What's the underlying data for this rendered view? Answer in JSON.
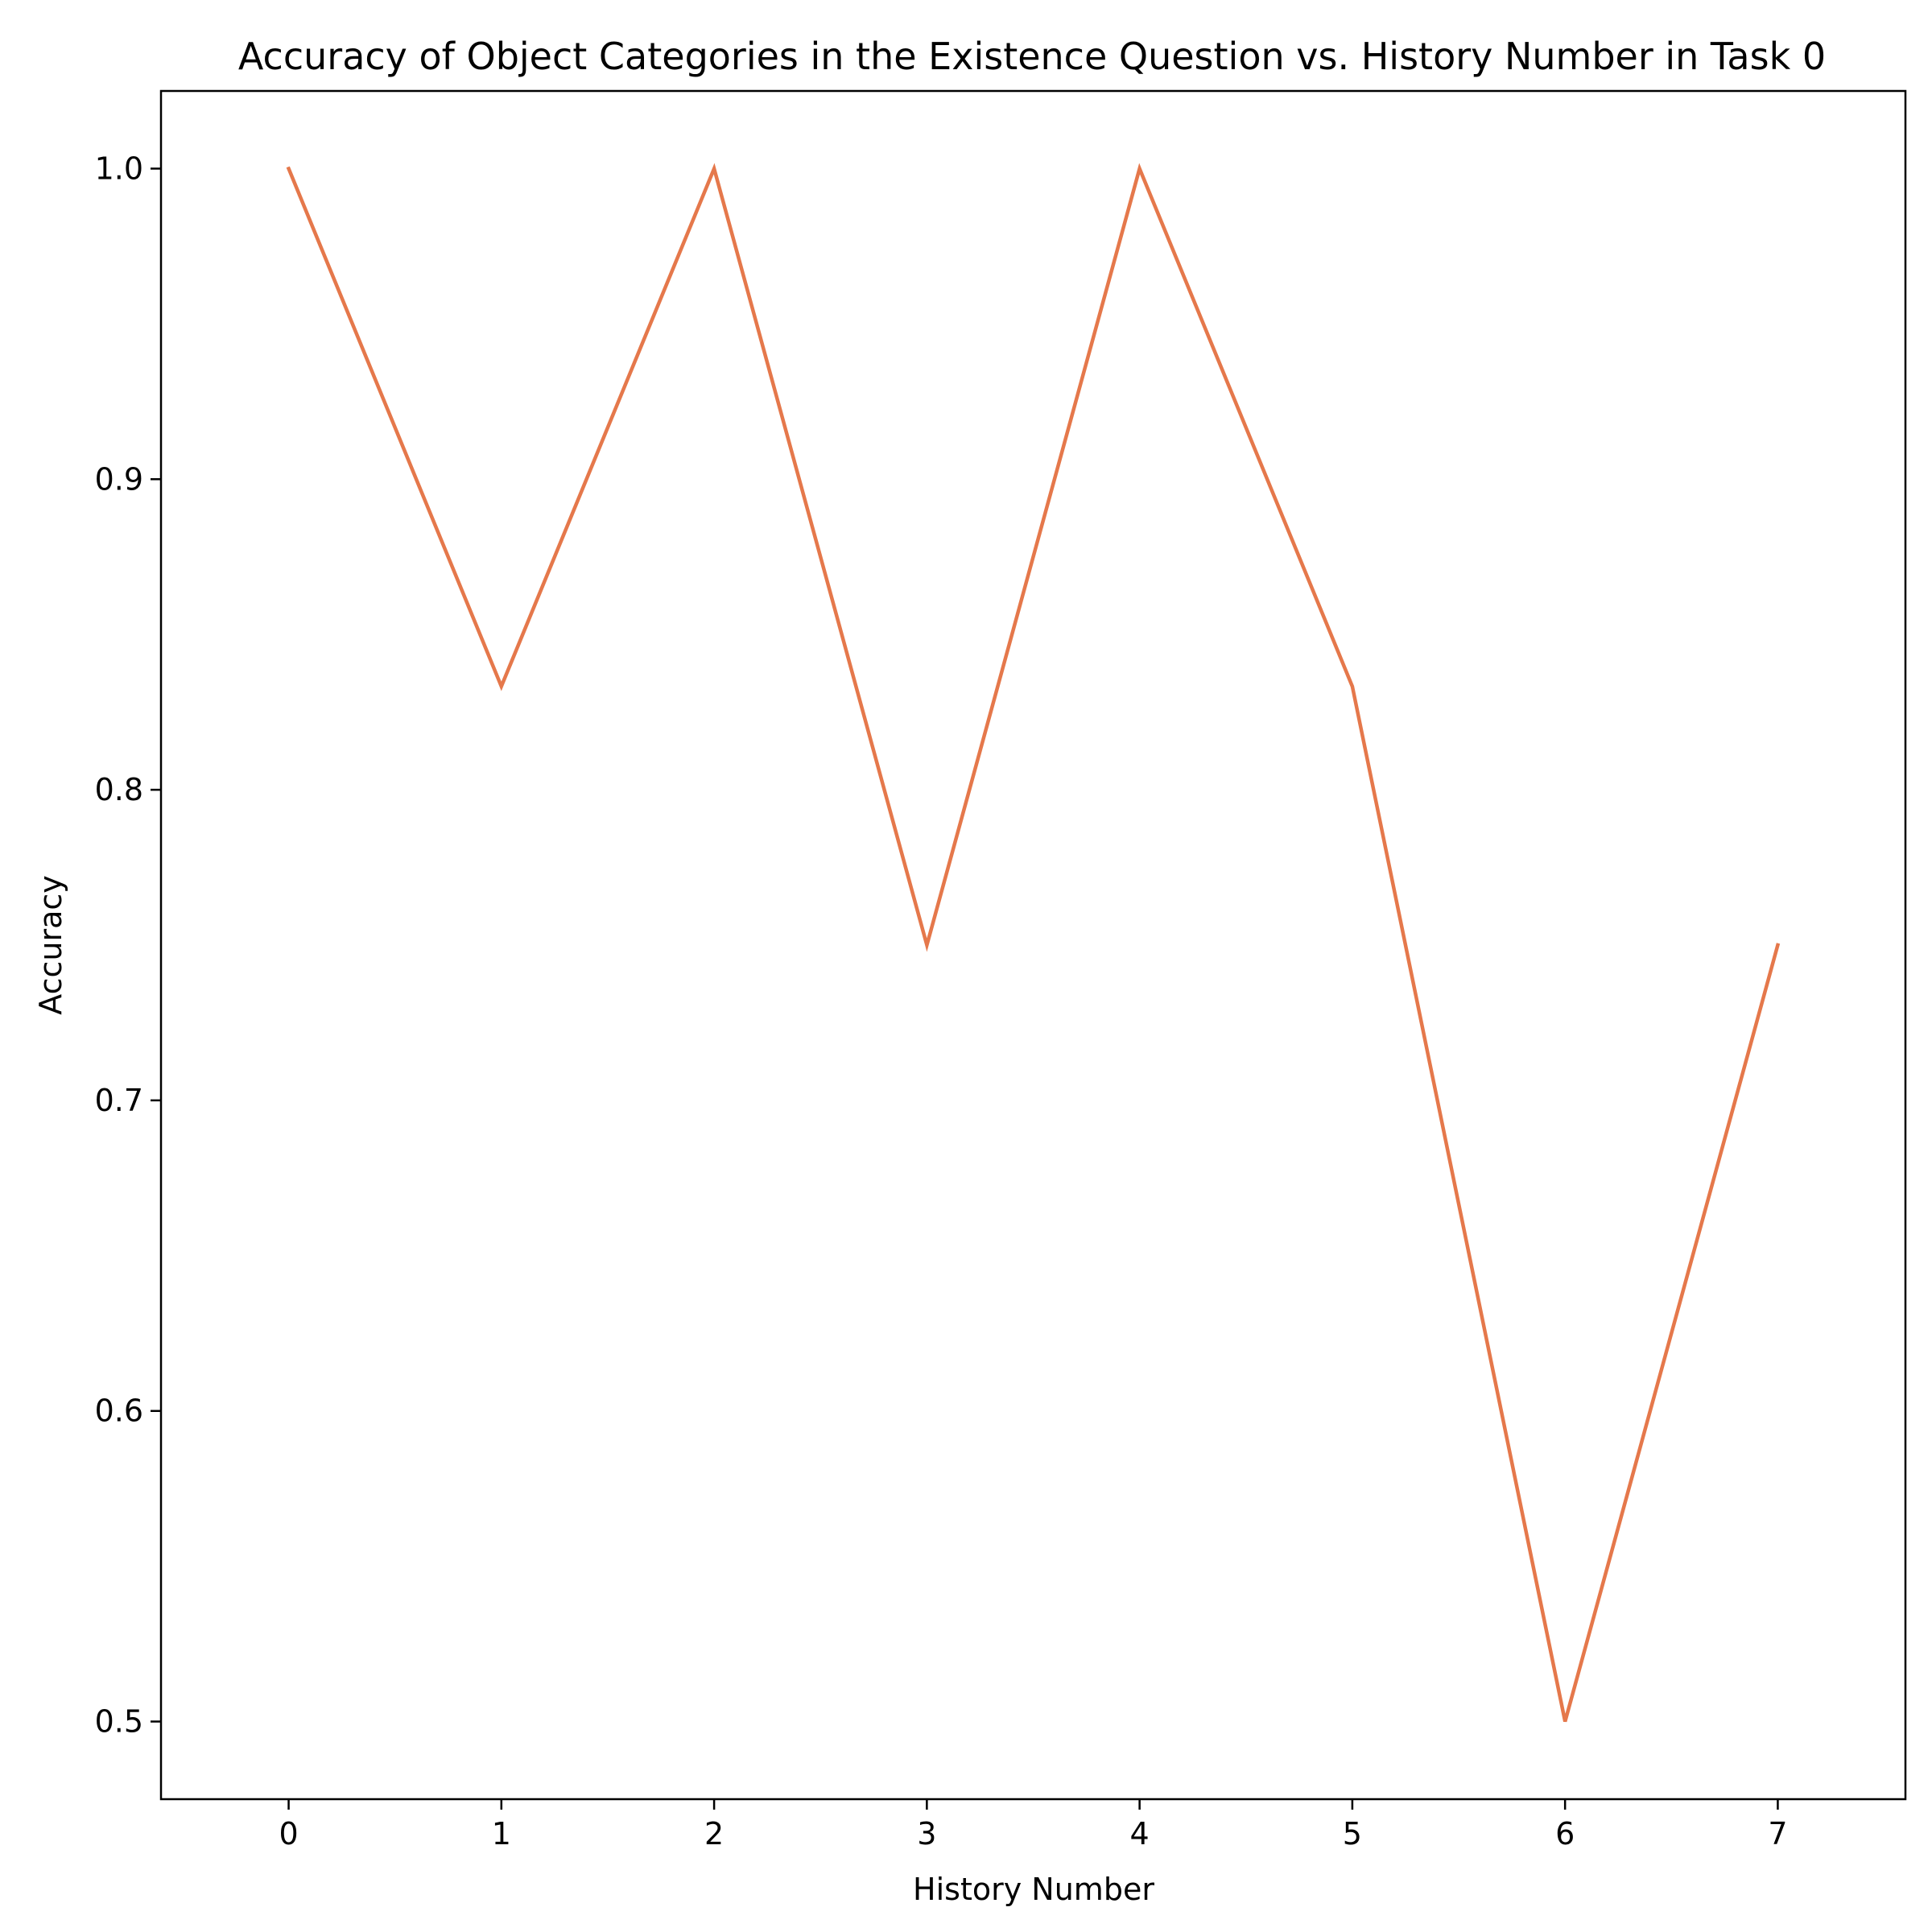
{
  "chart_data": {
    "type": "line",
    "title": "Accuracy of Object Categories in the Existence Question vs. History Number in Task 0",
    "xlabel": "History Number",
    "ylabel": "Accuracy",
    "x": [
      0,
      1,
      2,
      3,
      4,
      5,
      6,
      7
    ],
    "series": [
      {
        "values": [
          1.0,
          0.8333,
          1.0,
          0.75,
          1.0,
          0.8333,
          0.5,
          0.75
        ],
        "color": "#e5784b"
      }
    ],
    "xlim": [
      -0.6,
      7.6
    ],
    "ylim": [
      0.475,
      1.025
    ],
    "xticks": [
      0,
      1,
      2,
      3,
      4,
      5,
      6,
      7
    ],
    "xtick_labels": [
      "0",
      "1",
      "2",
      "3",
      "4",
      "5",
      "6",
      "7"
    ],
    "yticks": [
      0.5,
      0.6,
      0.7,
      0.8,
      0.9,
      1.0
    ],
    "ytick_labels": [
      "0.5",
      "0.6",
      "0.7",
      "0.8",
      "0.9",
      "1.0"
    ],
    "grid": false,
    "legend": "none"
  }
}
